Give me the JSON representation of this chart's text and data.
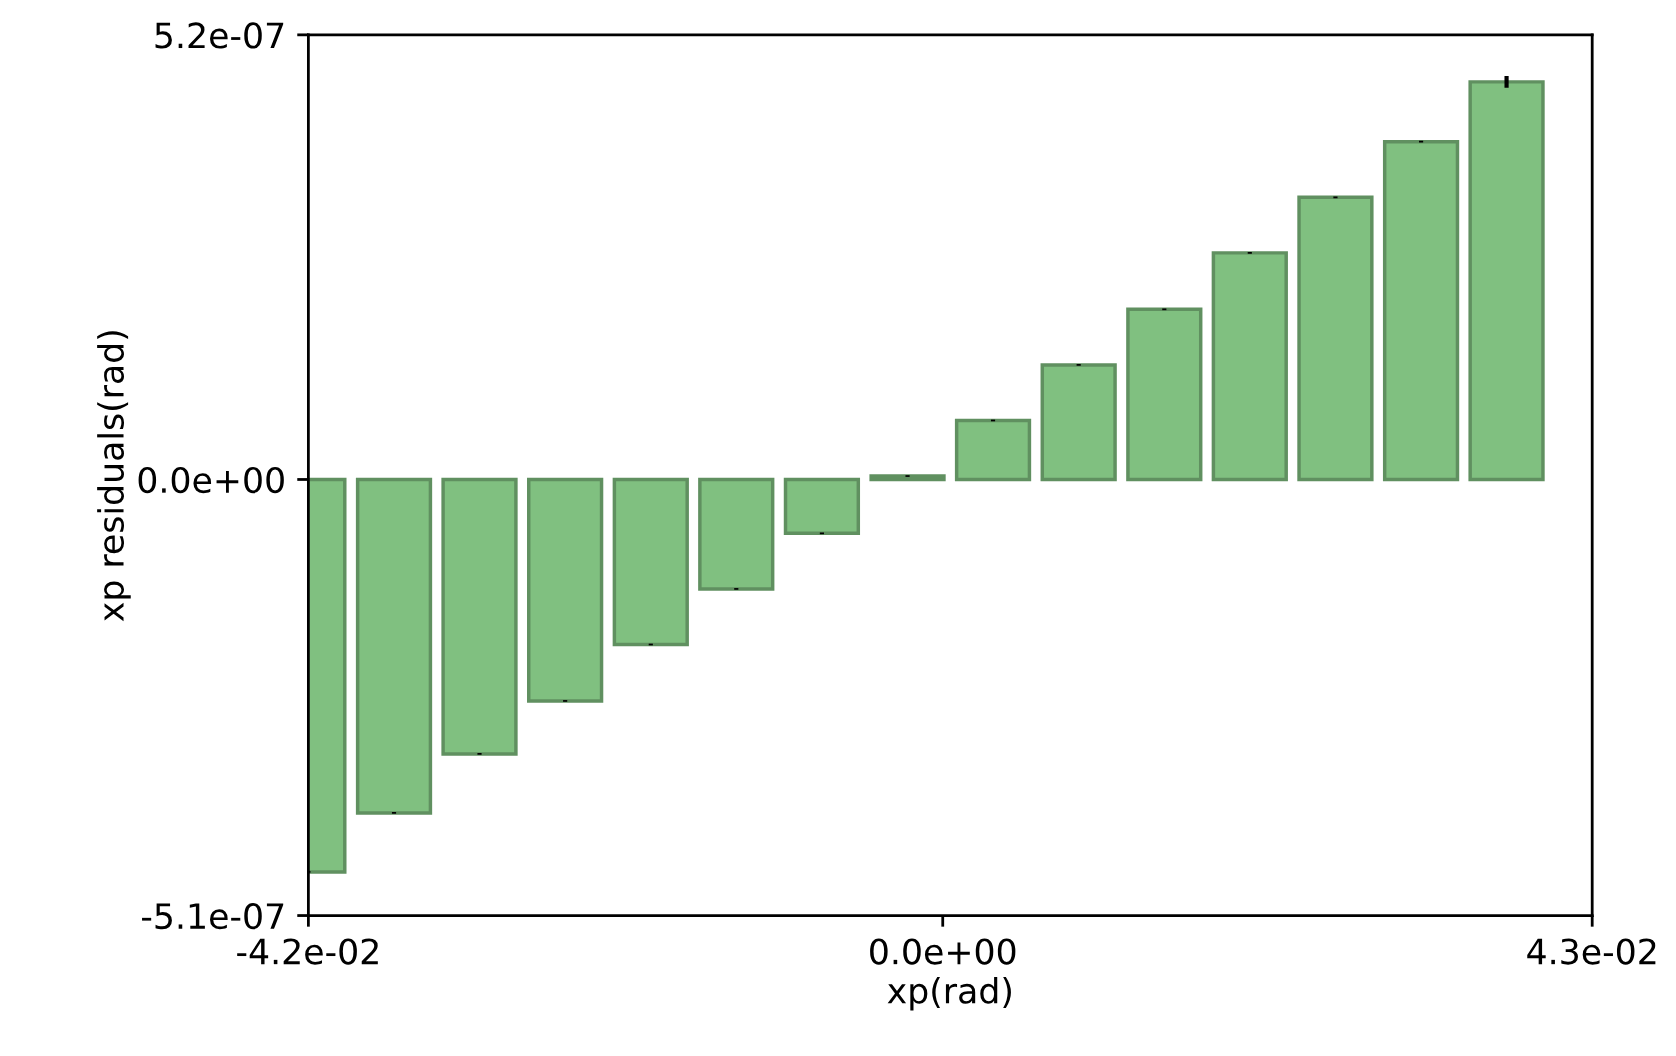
{
  "chart_data": {
    "type": "bar",
    "xlabel": "xp(rad)",
    "ylabel": "xp residuals(rad)",
    "x": [
      -0.042,
      -0.03633,
      -0.03067,
      -0.025,
      -0.01933,
      -0.01367,
      -0.008,
      -0.00233,
      0.00333,
      0.009,
      0.01467,
      0.02033,
      0.026,
      0.03167,
      0.03733
    ],
    "series": [
      {
        "color": "#80c080",
        "values": [
          -4.59e-07,
          -3.9e-07,
          -3.21e-07,
          -2.59e-07,
          -1.93e-07,
          -1.28e-07,
          -6.3e-08,
          4e-09,
          6.9e-08,
          1.34e-07,
          1.99e-07,
          2.65e-07,
          3.3e-07,
          3.95e-07,
          4.65e-07
        ],
        "errors": [
          1e-09,
          1e-09,
          1e-09,
          1e-09,
          1e-09,
          1e-09,
          1e-09,
          1e-09,
          1e-09,
          1e-09,
          1e-09,
          1e-09,
          1e-09,
          1e-09,
          7e-09
        ]
      }
    ],
    "xlim": [
      -0.042,
      0.043
    ],
    "xticks": [
      {
        "value": -0.042,
        "label": "-4.2e-02"
      },
      {
        "value": 0.0,
        "label": "0.0e+00"
      },
      {
        "value": 0.043,
        "label": "4.3e-02"
      }
    ],
    "ylim": [
      -5.1e-07,
      5.2e-07
    ],
    "yticks": [
      {
        "value": -5.1e-07,
        "label": "-5.1e-07"
      },
      {
        "value": 0.0,
        "label": "0.0e+00"
      },
      {
        "value": 5.2e-07,
        "label": "5.2e-07"
      }
    ],
    "grid": false,
    "legend": false
  }
}
